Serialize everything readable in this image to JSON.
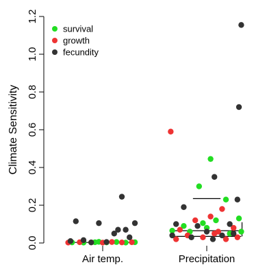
{
  "chart_data": {
    "type": "scatter",
    "ylabel": "Climate Sensitivity",
    "ylim": [
      0,
      1.2
    ],
    "yticks": [
      0.0,
      0.2,
      0.4,
      0.6,
      0.8,
      1.0,
      1.2
    ],
    "ytick_labels": [
      "0.0",
      "0.2",
      "0.4",
      "0.6",
      "0.8",
      "1.0",
      "1.2"
    ],
    "categories": [
      "Air temp.",
      "Precipitation"
    ],
    "legend_position": "top-left",
    "colors": {
      "survival": "#22dd22",
      "growth": "#ee3333",
      "fecundity": "#333333",
      "whisker": "#000000"
    },
    "series": [
      {
        "name": "survival",
        "color": "#22dd22",
        "points": [
          {
            "cat": 0,
            "offset": -0.4,
            "value": 0.003
          },
          {
            "cat": 0,
            "offset": -0.25,
            "value": 0.002
          },
          {
            "cat": 0,
            "offset": -0.1,
            "value": 0.004
          },
          {
            "cat": 0,
            "offset": 0.05,
            "value": 0.003
          },
          {
            "cat": 0,
            "offset": 0.18,
            "value": 0.005
          },
          {
            "cat": 0,
            "offset": 0.3,
            "value": 0.002
          },
          {
            "cat": 0,
            "offset": 0.42,
            "value": 0.004
          },
          {
            "cat": 0,
            "offset": -0.05,
            "value": 0.006
          },
          {
            "cat": 1,
            "offset": 0.05,
            "value": 0.445
          },
          {
            "cat": 1,
            "offset": -0.1,
            "value": 0.3
          },
          {
            "cat": 1,
            "offset": 0.25,
            "value": 0.23
          },
          {
            "cat": 1,
            "offset": -0.3,
            "value": 0.09
          },
          {
            "cat": 1,
            "offset": 0.42,
            "value": 0.13
          },
          {
            "cat": 1,
            "offset": 0.12,
            "value": 0.12
          },
          {
            "cat": 1,
            "offset": -0.22,
            "value": 0.06
          },
          {
            "cat": 1,
            "offset": 0.0,
            "value": 0.08
          },
          {
            "cat": 1,
            "offset": -0.45,
            "value": 0.065
          },
          {
            "cat": 1,
            "offset": 0.3,
            "value": 0.05
          },
          {
            "cat": 1,
            "offset": 0.45,
            "value": 0.06
          },
          {
            "cat": 1,
            "offset": -0.05,
            "value": 0.105
          }
        ]
      },
      {
        "name": "growth",
        "color": "#ee3333",
        "points": [
          {
            "cat": 0,
            "offset": -0.45,
            "value": 0.002
          },
          {
            "cat": 0,
            "offset": -0.3,
            "value": 0.004
          },
          {
            "cat": 0,
            "offset": -0.15,
            "value": 0.003
          },
          {
            "cat": 0,
            "offset": 0.0,
            "value": 0.002
          },
          {
            "cat": 0,
            "offset": 0.12,
            "value": 0.005
          },
          {
            "cat": 0,
            "offset": 0.25,
            "value": 0.003
          },
          {
            "cat": 0,
            "offset": 0.38,
            "value": 0.004
          },
          {
            "cat": 1,
            "offset": -0.47,
            "value": 0.59
          },
          {
            "cat": 1,
            "offset": 0.2,
            "value": 0.18
          },
          {
            "cat": 1,
            "offset": -0.15,
            "value": 0.12
          },
          {
            "cat": 1,
            "offset": 0.05,
            "value": 0.14
          },
          {
            "cat": 1,
            "offset": -0.35,
            "value": 0.07
          },
          {
            "cat": 1,
            "offset": 0.35,
            "value": 0.08
          },
          {
            "cat": 1,
            "offset": -0.25,
            "value": 0.04
          },
          {
            "cat": 1,
            "offset": -0.05,
            "value": 0.03
          },
          {
            "cat": 1,
            "offset": 0.1,
            "value": 0.05
          },
          {
            "cat": 1,
            "offset": 0.25,
            "value": 0.02
          },
          {
            "cat": 1,
            "offset": 0.4,
            "value": 0.03
          },
          {
            "cat": 1,
            "offset": -0.4,
            "value": 0.02
          },
          {
            "cat": 1,
            "offset": 0.15,
            "value": 0.06
          }
        ]
      },
      {
        "name": "fecundity",
        "color": "#333333",
        "points": [
          {
            "cat": 0,
            "offset": -0.35,
            "value": 0.115
          },
          {
            "cat": 0,
            "offset": 0.25,
            "value": 0.245
          },
          {
            "cat": 0,
            "offset": -0.05,
            "value": 0.105
          },
          {
            "cat": 0,
            "offset": 0.42,
            "value": 0.105
          },
          {
            "cat": 0,
            "offset": 0.2,
            "value": 0.07
          },
          {
            "cat": 0,
            "offset": 0.3,
            "value": 0.07
          },
          {
            "cat": 0,
            "offset": 0.15,
            "value": 0.05
          },
          {
            "cat": 0,
            "offset": 0.35,
            "value": 0.03
          },
          {
            "cat": 0,
            "offset": -0.25,
            "value": 0.015
          },
          {
            "cat": 0,
            "offset": -0.42,
            "value": 0.01
          },
          {
            "cat": 0,
            "offset": 0.05,
            "value": 0.005
          },
          {
            "cat": 0,
            "offset": -0.15,
            "value": 0.003
          },
          {
            "cat": 1,
            "offset": 0.45,
            "value": 1.155
          },
          {
            "cat": 1,
            "offset": 0.42,
            "value": 0.72
          },
          {
            "cat": 1,
            "offset": 0.1,
            "value": 0.35
          },
          {
            "cat": 1,
            "offset": -0.3,
            "value": 0.19
          },
          {
            "cat": 1,
            "offset": 0.4,
            "value": 0.23
          },
          {
            "cat": 1,
            "offset": -0.4,
            "value": 0.1
          },
          {
            "cat": 1,
            "offset": 0.3,
            "value": 0.1
          },
          {
            "cat": 1,
            "offset": -0.12,
            "value": 0.09
          },
          {
            "cat": 1,
            "offset": 0.0,
            "value": 0.06
          },
          {
            "cat": 1,
            "offset": 0.2,
            "value": 0.04
          },
          {
            "cat": 1,
            "offset": -0.2,
            "value": 0.03
          },
          {
            "cat": 1,
            "offset": 0.35,
            "value": 0.05
          },
          {
            "cat": 1,
            "offset": -0.45,
            "value": 0.04
          },
          {
            "cat": 1,
            "offset": 0.08,
            "value": 0.02
          }
        ]
      }
    ],
    "summary_lines": [
      {
        "cat": 0,
        "value": 0.003,
        "half_width": 0.45
      },
      {
        "cat": 1,
        "value": 0.235,
        "half_width": 0.18
      },
      {
        "cat": 1,
        "value": 0.065,
        "half_width": 0.45
      },
      {
        "cat": 1,
        "value": 0.035,
        "half_width": 0.45
      }
    ],
    "whisker": {
      "cat": 1,
      "offset": 0.46,
      "low": 0.035,
      "high": 0.11
    }
  }
}
